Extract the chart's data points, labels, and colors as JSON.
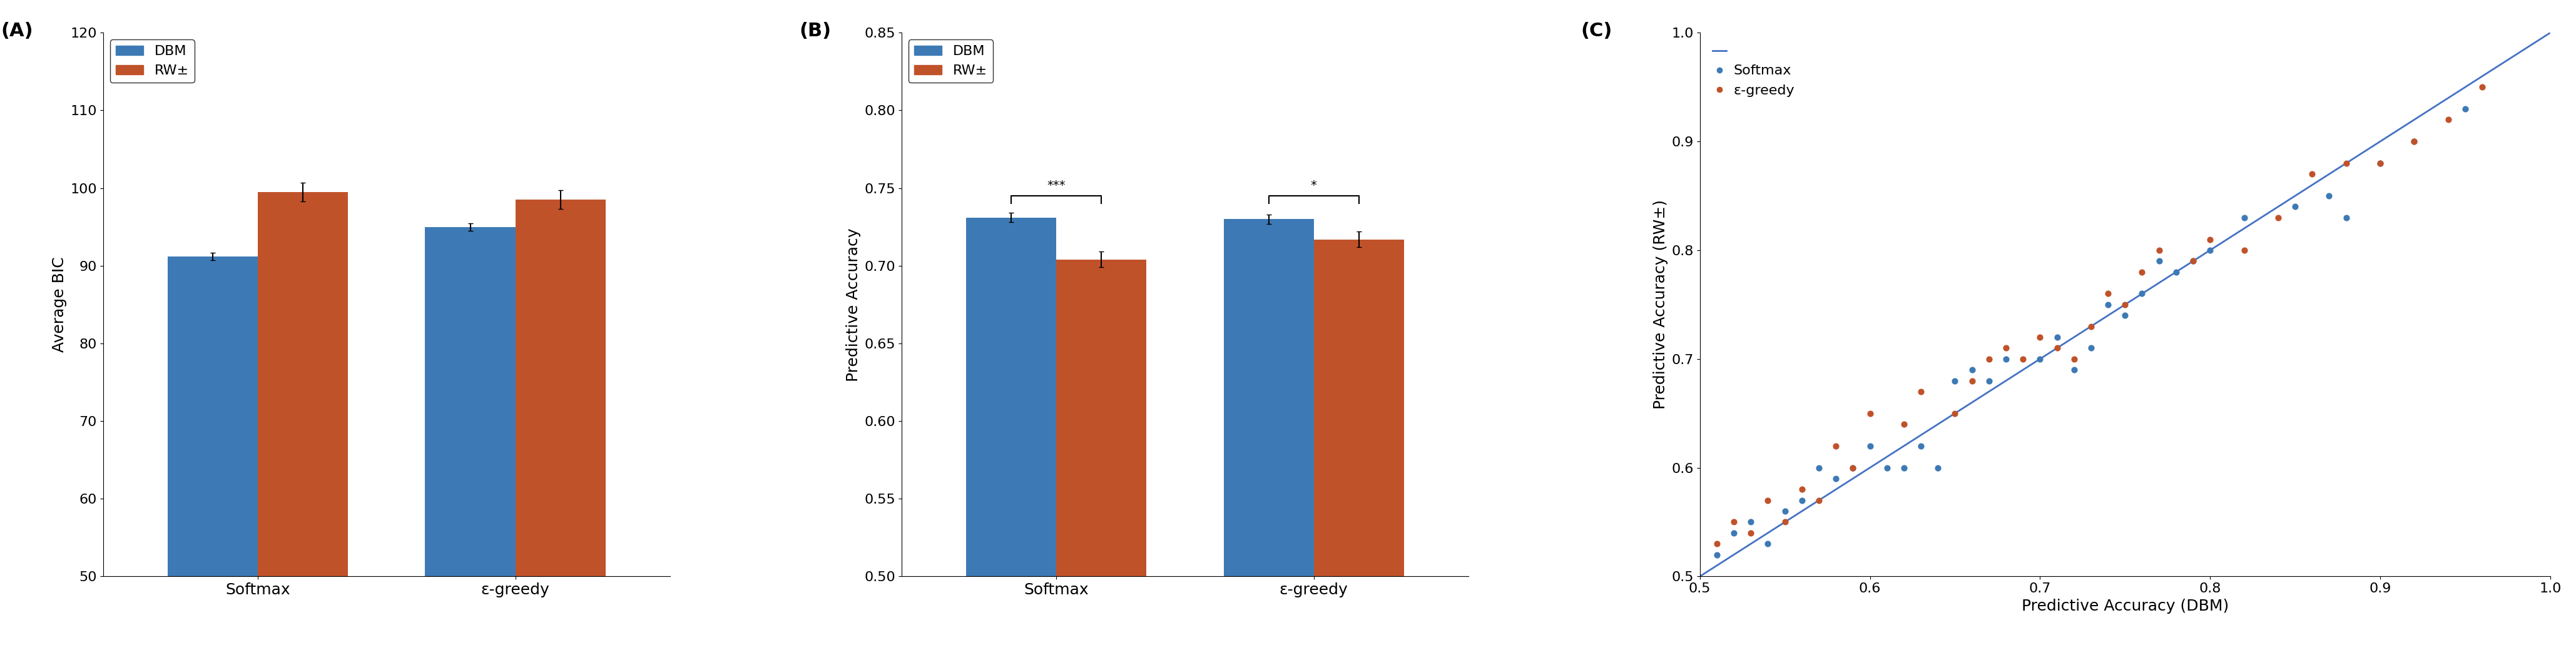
{
  "panel_A": {
    "title": "(A)",
    "ylabel": "Average BIC",
    "ylim": [
      50,
      120
    ],
    "yticks": [
      50,
      60,
      70,
      80,
      90,
      100,
      110,
      120
    ],
    "categories": [
      "Softmax",
      "ε-greedy"
    ],
    "dbm_values": [
      91.2,
      95.0
    ],
    "rw_values": [
      99.5,
      98.5
    ],
    "dbm_err": [
      0.5,
      0.5
    ],
    "rw_err": [
      1.2,
      1.2
    ],
    "dbm_color": "#3D7AB5",
    "rw_color": "#C0522A"
  },
  "panel_B": {
    "title": "(B)",
    "ylabel": "Predictive Accuracy",
    "ylim": [
      0.5,
      0.85
    ],
    "yticks": [
      0.5,
      0.55,
      0.6,
      0.65,
      0.7,
      0.75,
      0.8,
      0.85
    ],
    "categories": [
      "Softmax",
      "ε-greedy"
    ],
    "dbm_values": [
      0.731,
      0.73
    ],
    "rw_values": [
      0.704,
      0.717
    ],
    "dbm_err": [
      0.003,
      0.003
    ],
    "rw_err": [
      0.005,
      0.005
    ],
    "dbm_color": "#3D7AB5",
    "rw_color": "#C0522A",
    "sig_softmax": "***",
    "sig_egreedy": "*"
  },
  "panel_C": {
    "title": "(C)",
    "xlabel": "Predictive Accuracy (DBM)",
    "ylabel": "Predictive Accuracy (RW±)",
    "xlim": [
      0.5,
      1.0
    ],
    "ylim": [
      0.5,
      1.0
    ],
    "xticks": [
      0.5,
      0.6,
      0.7,
      0.8,
      0.9,
      1.0
    ],
    "yticks": [
      0.5,
      0.6,
      0.7,
      0.8,
      0.9,
      1.0
    ],
    "line_color": "#4472C4",
    "softmax_color": "#3D7AB5",
    "egreedy_color": "#C0522A",
    "softmax_x": [
      0.51,
      0.52,
      0.53,
      0.54,
      0.55,
      0.56,
      0.57,
      0.58,
      0.59,
      0.6,
      0.61,
      0.62,
      0.63,
      0.64,
      0.65,
      0.66,
      0.67,
      0.68,
      0.7,
      0.71,
      0.72,
      0.73,
      0.74,
      0.75,
      0.76,
      0.77,
      0.78,
      0.79,
      0.8,
      0.82,
      0.85,
      0.87,
      0.88,
      0.9,
      0.92,
      0.95
    ],
    "softmax_y": [
      0.52,
      0.54,
      0.55,
      0.53,
      0.56,
      0.57,
      0.6,
      0.59,
      0.6,
      0.62,
      0.6,
      0.6,
      0.62,
      0.6,
      0.68,
      0.69,
      0.68,
      0.7,
      0.7,
      0.72,
      0.69,
      0.71,
      0.75,
      0.74,
      0.76,
      0.79,
      0.78,
      0.79,
      0.8,
      0.83,
      0.84,
      0.85,
      0.83,
      0.88,
      0.9,
      0.93
    ],
    "egreedy_x": [
      0.51,
      0.52,
      0.53,
      0.54,
      0.55,
      0.56,
      0.57,
      0.58,
      0.59,
      0.6,
      0.62,
      0.63,
      0.65,
      0.66,
      0.67,
      0.68,
      0.69,
      0.7,
      0.71,
      0.72,
      0.73,
      0.74,
      0.75,
      0.76,
      0.77,
      0.79,
      0.8,
      0.82,
      0.84,
      0.86,
      0.88,
      0.9,
      0.92,
      0.94,
      0.96
    ],
    "egreedy_y": [
      0.53,
      0.55,
      0.54,
      0.57,
      0.55,
      0.58,
      0.57,
      0.62,
      0.6,
      0.65,
      0.64,
      0.67,
      0.65,
      0.68,
      0.7,
      0.71,
      0.7,
      0.72,
      0.71,
      0.7,
      0.73,
      0.76,
      0.75,
      0.78,
      0.8,
      0.79,
      0.81,
      0.8,
      0.83,
      0.87,
      0.88,
      0.88,
      0.9,
      0.92,
      0.95
    ]
  },
  "dbm_color": "#3D7AB5",
  "rw_color": "#C0522A",
  "bar_width": 0.35
}
